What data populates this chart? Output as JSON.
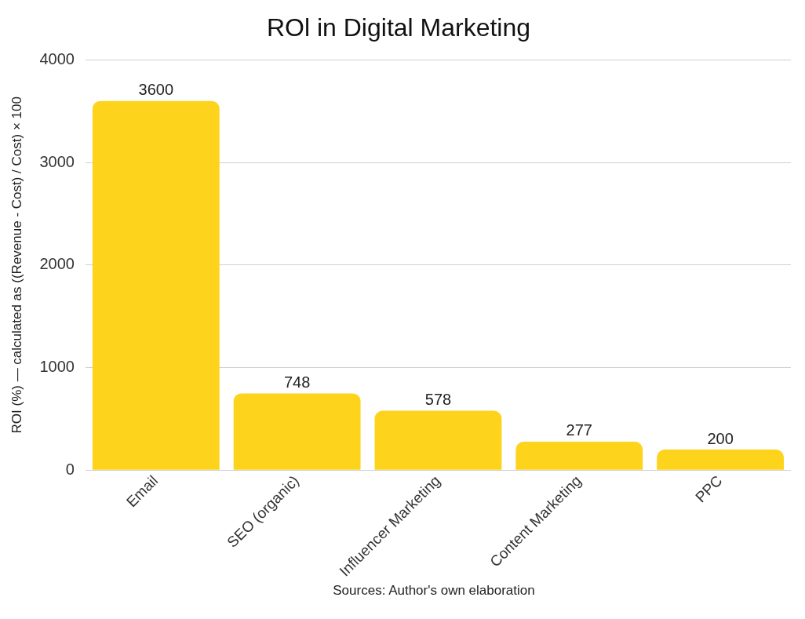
{
  "chart_data": {
    "type": "bar",
    "title": "ROl in Digital Marketing",
    "ylabel": "ROI (%) — calculated as ((Revenue - Cost) / Cost) × 100",
    "categories": [
      "Email",
      "SEO (organic)",
      "Influencer Marketing",
      "Content Marketing",
      "PPC"
    ],
    "values": [
      3600,
      748,
      578,
      277,
      200
    ],
    "color": "#fdd31c",
    "ylim": [
      0,
      4000
    ],
    "yticks": [
      0,
      1000,
      2000,
      3000,
      4000
    ],
    "grid": "y",
    "legend": false,
    "data_labels": true,
    "annotations": [
      "Sources: Author's own elaboration"
    ]
  }
}
